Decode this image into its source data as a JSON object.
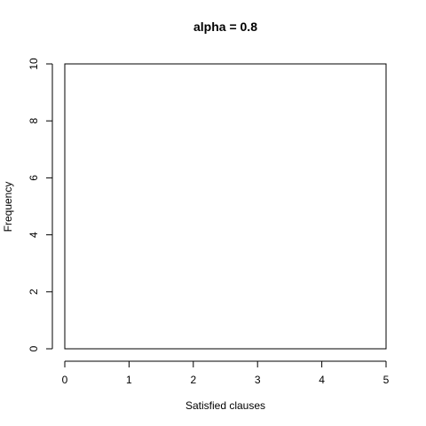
{
  "chart_data": {
    "type": "bar",
    "title": "alpha = 0.8",
    "xlabel": "Satisfied clauses",
    "ylabel": "Frequency",
    "xlim": [
      0,
      5
    ],
    "ylim": [
      0,
      10
    ],
    "x_ticks": [
      "0",
      "1",
      "2",
      "3",
      "4",
      "5"
    ],
    "y_ticks": [
      "0",
      "2",
      "4",
      "6",
      "8",
      "10"
    ],
    "categories": [],
    "values": [],
    "grid": false,
    "legend": "none"
  }
}
